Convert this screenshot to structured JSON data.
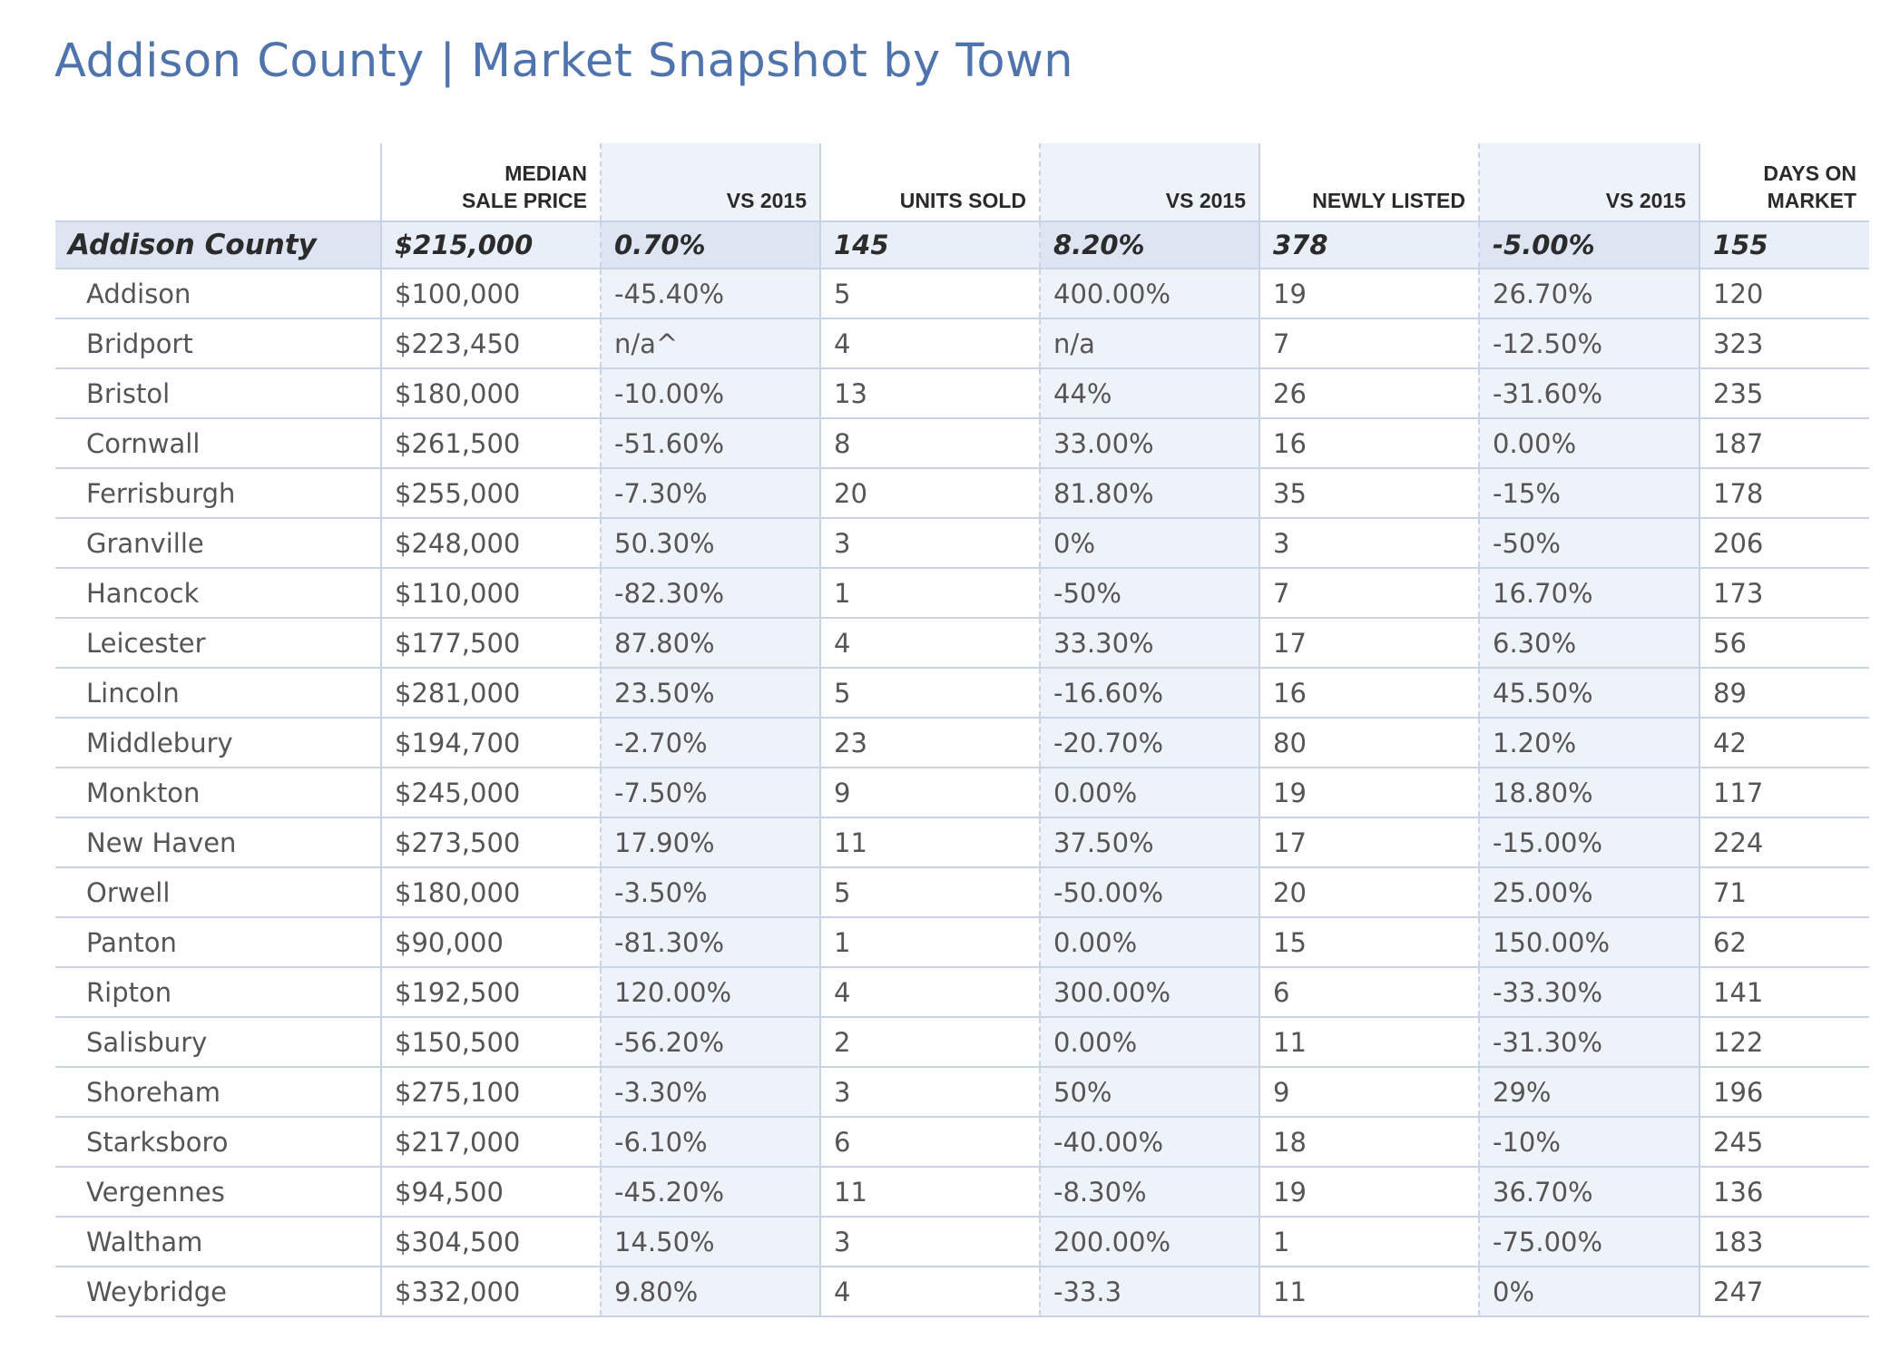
{
  "title": "Addison County | Market Snapshot by Town",
  "headers": [
    "",
    "MEDIAN\nSALE PRICE",
    "VS 2015",
    "UNITS SOLD",
    "VS 2015",
    "NEWLY LISTED",
    "VS 2015",
    "DAYS ON\nMARKET"
  ],
  "total": [
    "Addison County",
    "$215,000",
    "0.70%",
    "145",
    "8.20%",
    "378",
    "-5.00%",
    "155"
  ],
  "rows": [
    [
      "Addison",
      "$100,000",
      "-45.40%",
      "5",
      "400.00%",
      "19",
      "26.70%",
      "120"
    ],
    [
      "Bridport",
      "$223,450",
      "n/a^",
      "4",
      "n/a",
      "7",
      "-12.50%",
      "323"
    ],
    [
      "Bristol",
      "$180,000",
      "-10.00%",
      "13",
      "44%",
      "26",
      "-31.60%",
      "235"
    ],
    [
      "Cornwall",
      "$261,500",
      "-51.60%",
      "8",
      "33.00%",
      "16",
      "0.00%",
      "187"
    ],
    [
      "Ferrisburgh",
      "$255,000",
      "-7.30%",
      "20",
      "81.80%",
      "35",
      "-15%",
      "178"
    ],
    [
      "Granville",
      "$248,000",
      "50.30%",
      "3",
      "0%",
      "3",
      "-50%",
      "206"
    ],
    [
      "Hancock",
      "$110,000",
      "-82.30%",
      "1",
      "-50%",
      "7",
      "16.70%",
      "173"
    ],
    [
      "Leicester",
      "$177,500",
      "87.80%",
      "4",
      "33.30%",
      "17",
      "6.30%",
      "56"
    ],
    [
      "Lincoln",
      "$281,000",
      "23.50%",
      "5",
      "-16.60%",
      "16",
      "45.50%",
      "89"
    ],
    [
      "Middlebury",
      "$194,700",
      "-2.70%",
      "23",
      "-20.70%",
      "80",
      "1.20%",
      "42"
    ],
    [
      "Monkton",
      "$245,000",
      "-7.50%",
      "9",
      "0.00%",
      "19",
      "18.80%",
      "117"
    ],
    [
      "New Haven",
      "$273,500",
      "17.90%",
      "11",
      "37.50%",
      "17",
      "-15.00%",
      "224"
    ],
    [
      "Orwell",
      "$180,000",
      "-3.50%",
      "5",
      "-50.00%",
      "20",
      "25.00%",
      "71"
    ],
    [
      "Panton",
      "$90,000",
      "-81.30%",
      "1",
      "0.00%",
      "15",
      "150.00%",
      "62"
    ],
    [
      "Ripton",
      "$192,500",
      "120.00%",
      "4",
      "300.00%",
      "6",
      "-33.30%",
      "141"
    ],
    [
      "Salisbury",
      "$150,500",
      "-56.20%",
      "2",
      "0.00%",
      "11",
      "-31.30%",
      "122"
    ],
    [
      "Shoreham",
      "$275,100",
      "-3.30%",
      "3",
      "50%",
      "9",
      "29%",
      "196"
    ],
    [
      "Starksboro",
      "$217,000",
      "-6.10%",
      "6",
      "-40.00%",
      "18",
      "-10%",
      "245"
    ],
    [
      "Vergennes",
      "$94,500",
      "-45.20%",
      "11",
      "-8.30%",
      "19",
      "36.70%",
      "136"
    ],
    [
      "Waltham",
      "$304,500",
      "14.50%",
      "3",
      "200.00%",
      "1",
      "-75.00%",
      "183"
    ],
    [
      "Weybridge",
      "$332,000",
      "9.80%",
      "4",
      "-33.3",
      "11",
      "0%",
      "247"
    ]
  ],
  "colors": {
    "title": "#4f74ad",
    "shade": "#eef3fa",
    "total_row": "#dde5f2",
    "rule": "#c9d3e6"
  }
}
